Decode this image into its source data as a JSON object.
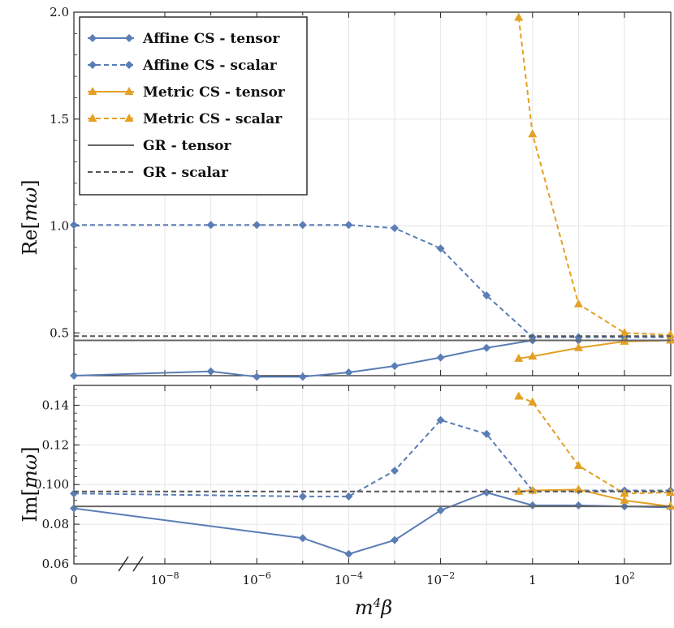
{
  "chart_data": [
    {
      "type": "line",
      "ylabel": "Re[mω]",
      "ylim": [
        0.3,
        2.0
      ],
      "yticks": [
        0.5,
        1.0,
        1.5,
        2.0
      ],
      "ytick_labels": [
        "0.5",
        "1.0",
        "1.5",
        "2.0"
      ],
      "grid": true,
      "legend_position": "top-left",
      "series": [
        {
          "name": "Affine CS - tensor",
          "style": "solid",
          "marker": "diamond",
          "color": "#5a7db5",
          "points": [
            [
              0,
              0.3
            ],
            [
              1e-07,
              0.32
            ],
            [
              1e-06,
              0.295
            ],
            [
              1e-05,
              0.295
            ],
            [
              0.0001,
              0.315
            ],
            [
              0.001,
              0.345
            ],
            [
              0.01,
              0.385
            ],
            [
              0.1,
              0.43
            ],
            [
              1,
              0.465
            ],
            [
              10,
              0.465
            ],
            [
              100,
              0.465
            ],
            [
              1000,
              0.465
            ]
          ]
        },
        {
          "name": "Affine CS - scalar",
          "style": "dashed",
          "marker": "diamond",
          "color": "#5a7db5",
          "points": [
            [
              0,
              1.005
            ],
            [
              1e-07,
              1.005
            ],
            [
              1e-06,
              1.005
            ],
            [
              1e-05,
              1.005
            ],
            [
              0.0001,
              1.005
            ],
            [
              0.001,
              0.99
            ],
            [
              0.01,
              0.895
            ],
            [
              0.1,
              0.675
            ],
            [
              1,
              0.48
            ],
            [
              10,
              0.48
            ],
            [
              100,
              0.48
            ],
            [
              1000,
              0.48
            ]
          ]
        },
        {
          "name": "Metric CS - tensor",
          "style": "solid",
          "marker": "triangle",
          "color": "#e3a024",
          "points": [
            [
              0.5,
              0.38
            ],
            [
              1,
              0.39
            ],
            [
              10,
              0.43
            ],
            [
              100,
              0.46
            ],
            [
              1000,
              0.465
            ]
          ]
        },
        {
          "name": "Metric CS - scalar",
          "style": "dashed",
          "marker": "triangle",
          "color": "#e3a024",
          "points": [
            [
              0.5,
              1.975
            ],
            [
              1,
              1.43
            ],
            [
              10,
              0.635
            ],
            [
              100,
              0.5
            ],
            [
              1000,
              0.49
            ]
          ]
        },
        {
          "name": "GR - tensor",
          "style": "solid",
          "marker": "none",
          "color": "#666666",
          "hline": 0.465
        },
        {
          "name": "GR - scalar",
          "style": "dashed",
          "marker": "none",
          "color": "#555555",
          "hline": 0.485
        }
      ]
    },
    {
      "type": "line",
      "ylabel": "Im[mω]",
      "xlabel": "m⁴β",
      "ylim": [
        0.06,
        0.15
      ],
      "yticks": [
        0.06,
        0.08,
        0.1,
        0.12,
        0.14
      ],
      "ytick_labels": [
        "0.06",
        "0.08",
        "0.100",
        "0.12",
        "0.14"
      ],
      "xtick_labels": [
        {
          "base": "0",
          "exp": ""
        },
        {
          "base": "10",
          "exp": "−8"
        },
        {
          "base": "10",
          "exp": "−6"
        },
        {
          "base": "10",
          "exp": "−4"
        },
        {
          "base": "10",
          "exp": "−2"
        },
        {
          "base": "1",
          "exp": ""
        },
        {
          "base": "10",
          "exp": "2"
        }
      ],
      "xticks": [
        0,
        1e-08,
        1e-06,
        0.0001,
        0.01,
        1,
        100
      ],
      "axis_break": "between 0 and 10^-8",
      "grid": true,
      "series": [
        {
          "name": "Affine CS - tensor",
          "style": "solid",
          "marker": "diamond",
          "color": "#5a7db5",
          "points": [
            [
              0,
              0.088
            ],
            [
              1e-05,
              0.073
            ],
            [
              0.0001,
              0.065
            ],
            [
              0.001,
              0.072
            ],
            [
              0.01,
              0.087
            ],
            [
              0.1,
              0.096
            ],
            [
              1,
              0.0895
            ],
            [
              10,
              0.0895
            ],
            [
              100,
              0.089
            ],
            [
              1000,
              0.0885
            ]
          ]
        },
        {
          "name": "Affine CS - scalar",
          "style": "dashed",
          "marker": "diamond",
          "color": "#5a7db5",
          "points": [
            [
              0,
              0.0955
            ],
            [
              1e-05,
              0.094
            ],
            [
              0.0001,
              0.094
            ],
            [
              0.001,
              0.107
            ],
            [
              0.01,
              0.1325
            ],
            [
              0.1,
              0.1255
            ],
            [
              1,
              0.097
            ],
            [
              10,
              0.097
            ],
            [
              100,
              0.097
            ],
            [
              1000,
              0.097
            ]
          ]
        },
        {
          "name": "Metric CS - tensor",
          "style": "solid",
          "marker": "triangle",
          "color": "#e3a024",
          "points": [
            [
              0.5,
              0.0965
            ],
            [
              1,
              0.097
            ],
            [
              10,
              0.0975
            ],
            [
              100,
              0.092
            ],
            [
              1000,
              0.089
            ]
          ]
        },
        {
          "name": "Metric CS - scalar",
          "style": "dashed",
          "marker": "triangle",
          "color": "#e3a024",
          "points": [
            [
              0.5,
              0.1445
            ],
            [
              1,
              0.1415
            ],
            [
              10,
              0.1095
            ],
            [
              100,
              0.0955
            ],
            [
              1000,
              0.096
            ]
          ]
        },
        {
          "name": "GR - tensor",
          "style": "solid",
          "marker": "none",
          "color": "#666666",
          "hline": 0.089
        },
        {
          "name": "GR - scalar",
          "style": "dashed",
          "marker": "none",
          "color": "#555555",
          "hline": 0.0965
        }
      ]
    }
  ]
}
